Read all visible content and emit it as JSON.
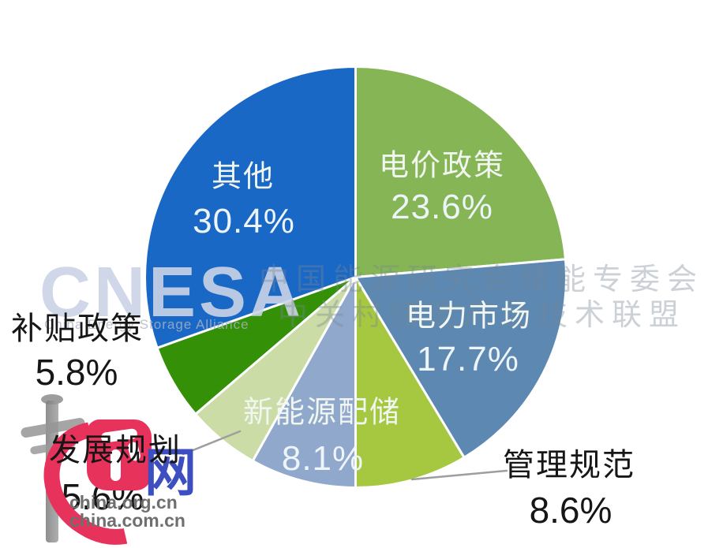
{
  "chart_data": {
    "type": "pie",
    "unit": "%",
    "start_angle_deg": 0,
    "clockwise": true,
    "legend_position": "none",
    "slices": [
      {
        "label": "电价政策",
        "value": 23.6,
        "pct_text": "23.6%",
        "color": "#85B554",
        "label_placement": "inside"
      },
      {
        "label": "电力市场",
        "value": 17.7,
        "pct_text": "17.7%",
        "color": "#5C88B2",
        "label_placement": "inside"
      },
      {
        "label": "管理规范",
        "value": 8.6,
        "pct_text": "8.6%",
        "color": "#A5C840",
        "label_placement": "outside"
      },
      {
        "label": "新能源配储",
        "value": 8.1,
        "pct_text": "8.1%",
        "color": "#8FA8CC",
        "label_placement": "inside"
      },
      {
        "label": "发展规划",
        "value": 5.6,
        "pct_text": "5.6%",
        "color": "#CBDCA6",
        "label_placement": "outside",
        "note": "percent partially hidden behind watermark logo"
      },
      {
        "label": "补贴政策",
        "value": 5.8,
        "pct_text": "5.8%",
        "color": "#349007",
        "label_placement": "outside"
      },
      {
        "label": "其他",
        "value": 30.4,
        "pct_text": "30.4%",
        "color": "#1A68C6",
        "label_placement": "inside"
      }
    ],
    "colors": {
      "slice_gap_stroke": "#FFFFFF",
      "inside_label_text": "#F1F6F1",
      "outside_label_text": "#161616",
      "leader_line": "#9E9E9E"
    }
  },
  "watermarks": {
    "cnesa_text": "CNESA",
    "cnesa_caption": "China Energy Storage Alliance",
    "line1": "中国能源研究会储能专委会",
    "line2": "中关村储能产业技术联盟",
    "china_net_char": "网",
    "domain1": "china.org.cn",
    "domain2": "china.com.cn"
  }
}
